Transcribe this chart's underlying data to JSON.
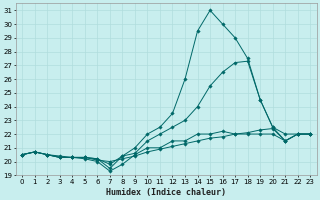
{
  "xlabel": "Humidex (Indice chaleur)",
  "bg_color": "#c8eeee",
  "grid_color": "#b0dddd",
  "line_color": "#006868",
  "xlim": [
    -0.5,
    23.5
  ],
  "ylim": [
    19,
    31.5
  ],
  "xticks": [
    0,
    1,
    2,
    3,
    4,
    5,
    6,
    7,
    8,
    9,
    10,
    11,
    12,
    13,
    14,
    15,
    16,
    17,
    18,
    19,
    20,
    21,
    22,
    23
  ],
  "yticks": [
    19,
    20,
    21,
    22,
    23,
    24,
    25,
    26,
    27,
    28,
    29,
    30,
    31
  ],
  "lines": [
    {
      "x": [
        0,
        1,
        2,
        3,
        4,
        5,
        6,
        7,
        8,
        9,
        10,
        11,
        12,
        13,
        14,
        15,
        16,
        17,
        18,
        19,
        20,
        21,
        22,
        23
      ],
      "y": [
        20.5,
        20.7,
        20.5,
        20.4,
        20.3,
        20.3,
        20.1,
        20.0,
        20.2,
        20.4,
        20.7,
        20.9,
        21.1,
        21.3,
        21.5,
        21.7,
        21.8,
        22.0,
        22.1,
        22.3,
        22.4,
        21.5,
        22.0,
        22.0
      ]
    },
    {
      "x": [
        0,
        1,
        2,
        3,
        4,
        5,
        6,
        7,
        8,
        9,
        10,
        11,
        12,
        13,
        14,
        15,
        16,
        17,
        18,
        19,
        20,
        21,
        22,
        23
      ],
      "y": [
        20.5,
        20.7,
        20.5,
        20.3,
        20.3,
        20.2,
        20.0,
        19.3,
        19.8,
        20.5,
        21.0,
        21.0,
        21.5,
        21.5,
        22.0,
        22.0,
        22.2,
        22.0,
        22.0,
        22.0,
        22.0,
        21.5,
        22.0,
        22.0
      ]
    },
    {
      "x": [
        0,
        1,
        2,
        3,
        4,
        5,
        6,
        7,
        8,
        9,
        10,
        11,
        12,
        13,
        14,
        15,
        16,
        17,
        18,
        19,
        20,
        21,
        22,
        23
      ],
      "y": [
        20.5,
        20.7,
        20.5,
        20.3,
        20.3,
        20.3,
        20.2,
        19.8,
        20.4,
        20.6,
        21.5,
        22.0,
        22.5,
        23.0,
        24.0,
        25.5,
        26.5,
        27.2,
        27.3,
        24.5,
        22.5,
        22.0,
        22.0,
        22.0
      ]
    },
    {
      "x": [
        0,
        1,
        2,
        3,
        4,
        5,
        6,
        7,
        8,
        9,
        10,
        11,
        12,
        13,
        14,
        15,
        16,
        17,
        18,
        19,
        20,
        21,
        22,
        23
      ],
      "y": [
        20.5,
        20.7,
        20.5,
        20.3,
        20.3,
        20.3,
        20.2,
        19.5,
        20.4,
        21.0,
        22.0,
        22.5,
        23.5,
        26.0,
        29.5,
        31.0,
        30.0,
        29.0,
        27.5,
        24.5,
        22.5,
        21.5,
        22.0,
        22.0
      ]
    }
  ]
}
